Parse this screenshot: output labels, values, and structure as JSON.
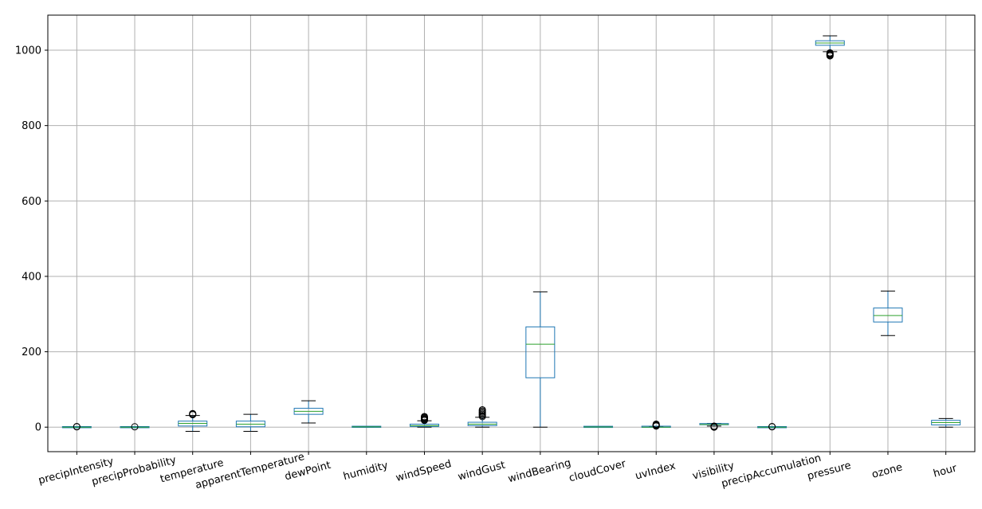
{
  "chart_data": {
    "type": "boxplot",
    "title": "",
    "xlabel": "",
    "ylabel": "",
    "ylim": [
      -65,
      1093
    ],
    "yticks": [
      0,
      200,
      400,
      600,
      800,
      1000
    ],
    "grid": true,
    "colors": {
      "box": "#1f77b4",
      "median": "#2ca02c",
      "whisker": "#000000",
      "grid": "#b0b0b0"
    },
    "categories": [
      "precipIntensity",
      "precipProbability",
      "temperature",
      "apparentTemperature",
      "dewPoint",
      "humidity",
      "windSpeed",
      "windGust",
      "windBearing",
      "cloudCover",
      "uvIndex",
      "visibility",
      "precipAccumulation",
      "pressure",
      "ozone",
      "hour"
    ],
    "boxes": [
      {
        "whislo": 0,
        "q1": 0,
        "med": 0,
        "q3": 0,
        "whishi": 0.5,
        "fliers": [
          1,
          1.5
        ]
      },
      {
        "whislo": 0,
        "q1": 0,
        "med": 0,
        "q3": 0,
        "whishi": 0.5,
        "fliers": [
          1
        ]
      },
      {
        "whislo": -11,
        "q1": 3,
        "med": 10,
        "q3": 16,
        "whishi": 31,
        "fliers": [
          33,
          34,
          35,
          36
        ]
      },
      {
        "whislo": -11,
        "q1": 1,
        "med": 8,
        "q3": 16,
        "whishi": 34,
        "fliers": []
      },
      {
        "whislo": 11,
        "q1": 34,
        "med": 42,
        "q3": 50,
        "whishi": 70,
        "fliers": []
      },
      {
        "whislo": 0.2,
        "q1": 0.6,
        "med": 0.75,
        "q3": 0.9,
        "whishi": 1,
        "fliers": []
      },
      {
        "whislo": 0,
        "q1": 2,
        "med": 4,
        "q3": 8,
        "whishi": 17,
        "fliers": [
          18,
          20,
          22,
          24,
          26,
          28
        ]
      },
      {
        "whislo": 0,
        "q1": 4,
        "med": 8,
        "q3": 13,
        "whishi": 26,
        "fliers": [
          28,
          31,
          34,
          37,
          40,
          43,
          46
        ]
      },
      {
        "whislo": 0,
        "q1": 131,
        "med": 220,
        "q3": 266,
        "whishi": 359,
        "fliers": []
      },
      {
        "whislo": 0,
        "q1": 0.1,
        "med": 0.4,
        "q3": 0.8,
        "whishi": 1,
        "fliers": []
      },
      {
        "whislo": 0,
        "q1": 0,
        "med": 0,
        "q3": 1,
        "whishi": 2,
        "fliers": [
          3,
          4,
          5,
          6,
          7,
          8
        ]
      },
      {
        "whislo": 3,
        "q1": 6,
        "med": 7,
        "q3": 8,
        "whishi": 10,
        "fliers": [
          0,
          0.5,
          1,
          1.5,
          2,
          2.5
        ]
      },
      {
        "whislo": 0,
        "q1": 0,
        "med": 0,
        "q3": 0,
        "whishi": 0.5,
        "fliers": [
          1,
          1.5
        ]
      },
      {
        "whislo": 996,
        "q1": 1013,
        "med": 1019,
        "q3": 1025,
        "whishi": 1038,
        "fliers": [
          985,
          987,
          989,
          991,
          993
        ]
      },
      {
        "whislo": 243,
        "q1": 279,
        "med": 296,
        "q3": 316,
        "whishi": 361,
        "fliers": []
      },
      {
        "whislo": 0,
        "q1": 6,
        "med": 12,
        "q3": 18,
        "whishi": 23,
        "fliers": []
      }
    ]
  }
}
